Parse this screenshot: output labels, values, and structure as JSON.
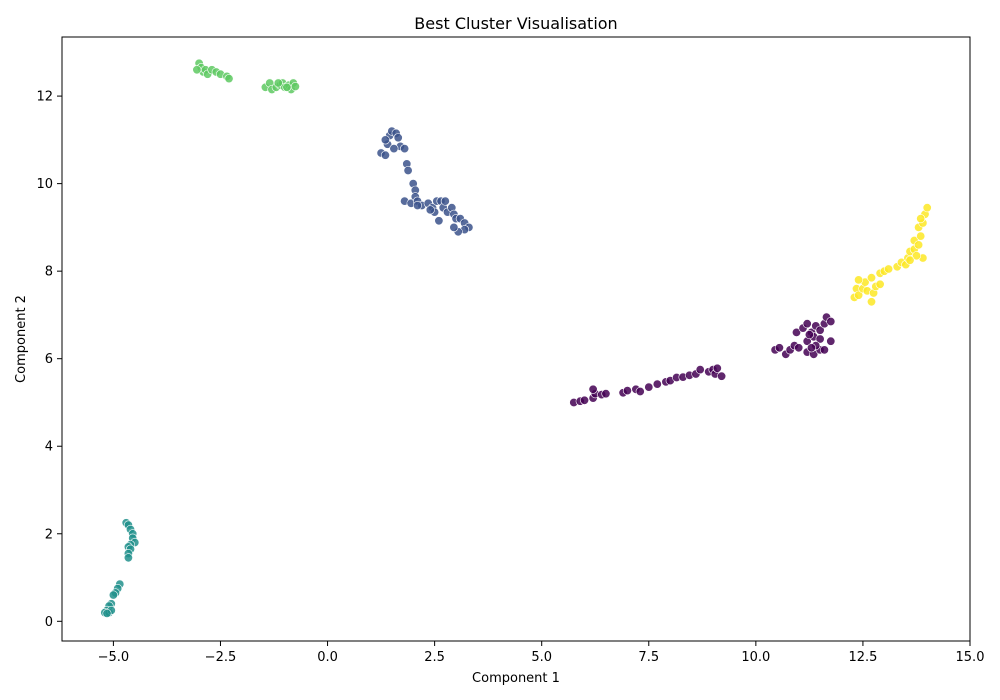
{
  "chart_data": {
    "type": "scatter",
    "title": "Best Cluster Visualisation",
    "xlabel": "Component 1",
    "ylabel": "Component 2",
    "xlim": [
      -6.2,
      15.0
    ],
    "ylim": [
      -0.45,
      13.35
    ],
    "x_ticks": [
      -5.0,
      -2.5,
      0.0,
      2.5,
      5.0,
      7.5,
      10.0,
      12.5,
      15.0
    ],
    "x_tick_labels": [
      "−5.0",
      "−2.5",
      "0.0",
      "2.5",
      "5.0",
      "7.5",
      "10.0",
      "12.5",
      "15.0"
    ],
    "y_ticks": [
      0,
      2,
      4,
      6,
      8,
      10,
      12
    ],
    "y_tick_labels": [
      "0",
      "2",
      "4",
      "6",
      "8",
      "10",
      "12"
    ],
    "grid": false,
    "colormap": "viridis",
    "series": [
      {
        "color": "#440154",
        "points": [
          [
            5.75,
            5.0
          ],
          [
            5.9,
            5.03
          ],
          [
            6.0,
            5.05
          ],
          [
            6.2,
            5.1
          ],
          [
            6.25,
            5.2
          ],
          [
            6.2,
            5.3
          ],
          [
            6.4,
            5.18
          ],
          [
            6.5,
            5.2
          ],
          [
            6.9,
            5.22
          ],
          [
            7.0,
            5.27
          ],
          [
            7.2,
            5.3
          ],
          [
            7.3,
            5.25
          ],
          [
            7.5,
            5.35
          ],
          [
            7.7,
            5.42
          ],
          [
            7.9,
            5.47
          ],
          [
            8.0,
            5.5
          ],
          [
            8.15,
            5.57
          ],
          [
            8.3,
            5.58
          ],
          [
            8.45,
            5.62
          ],
          [
            8.6,
            5.65
          ],
          [
            8.7,
            5.75
          ],
          [
            8.9,
            5.7
          ],
          [
            9.0,
            5.75
          ],
          [
            9.05,
            5.65
          ],
          [
            9.2,
            5.6
          ],
          [
            9.1,
            5.78
          ],
          [
            10.45,
            6.2
          ],
          [
            10.55,
            6.25
          ],
          [
            10.7,
            6.1
          ],
          [
            10.8,
            6.2
          ],
          [
            10.9,
            6.3
          ],
          [
            11.0,
            6.25
          ],
          [
            10.95,
            6.6
          ],
          [
            11.1,
            6.7
          ],
          [
            11.2,
            6.8
          ],
          [
            11.3,
            6.6
          ],
          [
            11.4,
            6.75
          ],
          [
            11.5,
            6.65
          ],
          [
            11.6,
            6.8
          ],
          [
            11.65,
            6.95
          ],
          [
            11.75,
            6.85
          ],
          [
            11.2,
            6.4
          ],
          [
            11.35,
            6.5
          ],
          [
            11.5,
            6.45
          ],
          [
            11.2,
            6.15
          ],
          [
            11.35,
            6.1
          ],
          [
            11.5,
            6.2
          ],
          [
            11.6,
            6.2
          ],
          [
            11.75,
            6.4
          ],
          [
            11.4,
            6.3
          ],
          [
            11.3,
            6.25
          ],
          [
            11.25,
            6.55
          ]
        ]
      },
      {
        "color": "#3b528b",
        "points": [
          [
            1.25,
            10.7
          ],
          [
            1.35,
            10.65
          ],
          [
            1.4,
            10.9
          ],
          [
            1.45,
            11.1
          ],
          [
            1.5,
            11.2
          ],
          [
            1.6,
            11.15
          ],
          [
            1.65,
            11.05
          ],
          [
            1.7,
            10.85
          ],
          [
            1.8,
            10.8
          ],
          [
            1.35,
            11.0
          ],
          [
            1.55,
            10.8
          ],
          [
            1.85,
            10.45
          ],
          [
            1.88,
            10.3
          ],
          [
            2.0,
            10.0
          ],
          [
            2.05,
            9.85
          ],
          [
            1.8,
            9.6
          ],
          [
            1.95,
            9.55
          ],
          [
            2.05,
            9.7
          ],
          [
            2.1,
            9.6
          ],
          [
            2.2,
            9.5
          ],
          [
            2.35,
            9.55
          ],
          [
            2.45,
            9.45
          ],
          [
            2.55,
            9.6
          ],
          [
            2.65,
            9.6
          ],
          [
            2.7,
            9.45
          ],
          [
            2.8,
            9.35
          ],
          [
            2.9,
            9.45
          ],
          [
            2.95,
            9.3
          ],
          [
            3.0,
            9.2
          ],
          [
            3.1,
            9.2
          ],
          [
            3.2,
            9.1
          ],
          [
            3.3,
            9.0
          ],
          [
            3.2,
            8.95
          ],
          [
            3.05,
            8.9
          ],
          [
            2.95,
            9.0
          ],
          [
            2.6,
            9.15
          ],
          [
            2.5,
            9.35
          ],
          [
            2.4,
            9.4
          ],
          [
            2.75,
            9.6
          ],
          [
            2.1,
            9.5
          ]
        ]
      },
      {
        "color": "#21918c",
        "points": [
          [
            -4.7,
            2.25
          ],
          [
            -4.65,
            2.2
          ],
          [
            -4.6,
            2.1
          ],
          [
            -4.55,
            2.0
          ],
          [
            -4.55,
            1.9
          ],
          [
            -4.5,
            1.8
          ],
          [
            -4.6,
            1.75
          ],
          [
            -4.65,
            1.7
          ],
          [
            -4.6,
            1.65
          ],
          [
            -4.65,
            1.55
          ],
          [
            -4.65,
            1.45
          ],
          [
            -4.85,
            0.85
          ],
          [
            -4.9,
            0.75
          ],
          [
            -4.95,
            0.65
          ],
          [
            -5.0,
            0.6
          ],
          [
            -5.05,
            0.4
          ],
          [
            -5.1,
            0.35
          ],
          [
            -5.15,
            0.25
          ],
          [
            -5.2,
            0.2
          ],
          [
            -5.1,
            0.2
          ],
          [
            -5.05,
            0.25
          ],
          [
            -5.15,
            0.18
          ]
        ]
      },
      {
        "color": "#5ec962",
        "points": [
          [
            -3.0,
            12.75
          ],
          [
            -2.95,
            12.65
          ],
          [
            -2.9,
            12.55
          ],
          [
            -2.85,
            12.6
          ],
          [
            -2.8,
            12.5
          ],
          [
            -2.7,
            12.6
          ],
          [
            -2.6,
            12.55
          ],
          [
            -2.5,
            12.5
          ],
          [
            -2.35,
            12.45
          ],
          [
            -2.3,
            12.4
          ],
          [
            -3.05,
            12.6
          ],
          [
            -1.45,
            12.2
          ],
          [
            -1.35,
            12.3
          ],
          [
            -1.3,
            12.15
          ],
          [
            -1.2,
            12.2
          ],
          [
            -1.1,
            12.25
          ],
          [
            -1.05,
            12.3
          ],
          [
            -1.0,
            12.2
          ],
          [
            -0.9,
            12.25
          ],
          [
            -0.85,
            12.15
          ],
          [
            -0.8,
            12.3
          ],
          [
            -0.75,
            12.22
          ],
          [
            -1.15,
            12.3
          ],
          [
            -0.95,
            12.2
          ]
        ]
      },
      {
        "color": "#fde725",
        "points": [
          [
            12.3,
            7.4
          ],
          [
            12.35,
            7.6
          ],
          [
            12.4,
            7.45
          ],
          [
            12.5,
            7.6
          ],
          [
            12.55,
            7.75
          ],
          [
            12.6,
            7.55
          ],
          [
            12.7,
            7.3
          ],
          [
            12.75,
            7.5
          ],
          [
            12.8,
            7.65
          ],
          [
            12.7,
            7.85
          ],
          [
            12.9,
            7.95
          ],
          [
            13.0,
            8.0
          ],
          [
            13.1,
            8.05
          ],
          [
            13.3,
            8.1
          ],
          [
            13.4,
            8.2
          ],
          [
            13.5,
            8.15
          ],
          [
            13.55,
            8.3
          ],
          [
            13.6,
            8.45
          ],
          [
            13.7,
            8.5
          ],
          [
            13.7,
            8.7
          ],
          [
            13.8,
            8.6
          ],
          [
            13.85,
            8.8
          ],
          [
            13.8,
            9.0
          ],
          [
            13.9,
            9.1
          ],
          [
            13.95,
            9.3
          ],
          [
            14.0,
            9.45
          ],
          [
            13.85,
            9.2
          ],
          [
            13.9,
            8.3
          ],
          [
            13.75,
            8.35
          ],
          [
            13.6,
            8.25
          ],
          [
            12.4,
            7.8
          ],
          [
            12.9,
            7.7
          ]
        ]
      }
    ]
  }
}
